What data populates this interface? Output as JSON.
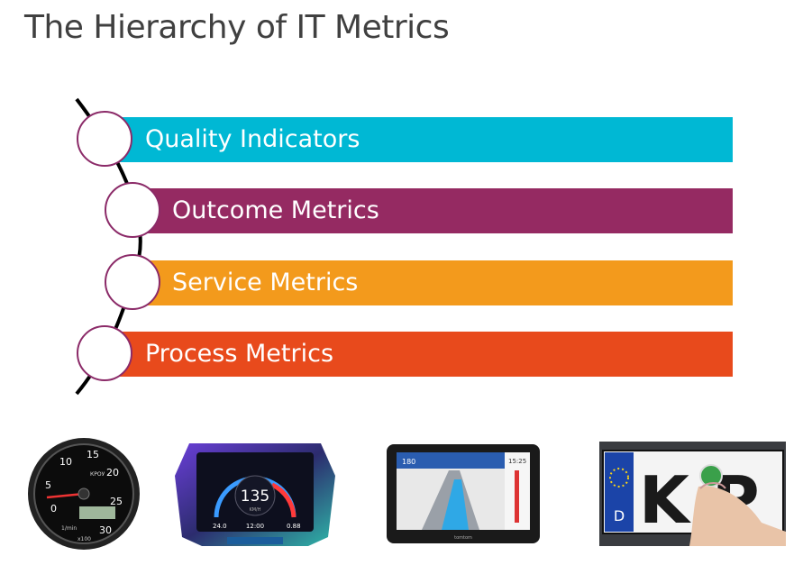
{
  "title": "The Hierarchy of IT Metrics",
  "levels": [
    {
      "label": "Quality Indicators",
      "color": "#00b8d4"
    },
    {
      "label": "Outcome Metrics",
      "color": "#952a62"
    },
    {
      "label": "Service Metrics",
      "color": "#f39a1c"
    },
    {
      "label": "Process Metrics",
      "color": "#e84a1c"
    }
  ],
  "images": {
    "speedometer": {
      "brand": "КРОУ",
      "unit": "1/min",
      "multiplier": "x100",
      "ticks": [
        "0",
        "5",
        "10",
        "15",
        "20",
        "25",
        "30"
      ]
    },
    "digital_dash": {
      "speed": "135",
      "unit": "KM/H",
      "left_readout": "24.0",
      "clock": "12:00",
      "right_readout": "0.88"
    },
    "gps": {
      "brand": "tomtom",
      "time": "15:25",
      "distance": "180"
    },
    "license_plate": {
      "country": "D",
      "letters": "K P"
    }
  }
}
